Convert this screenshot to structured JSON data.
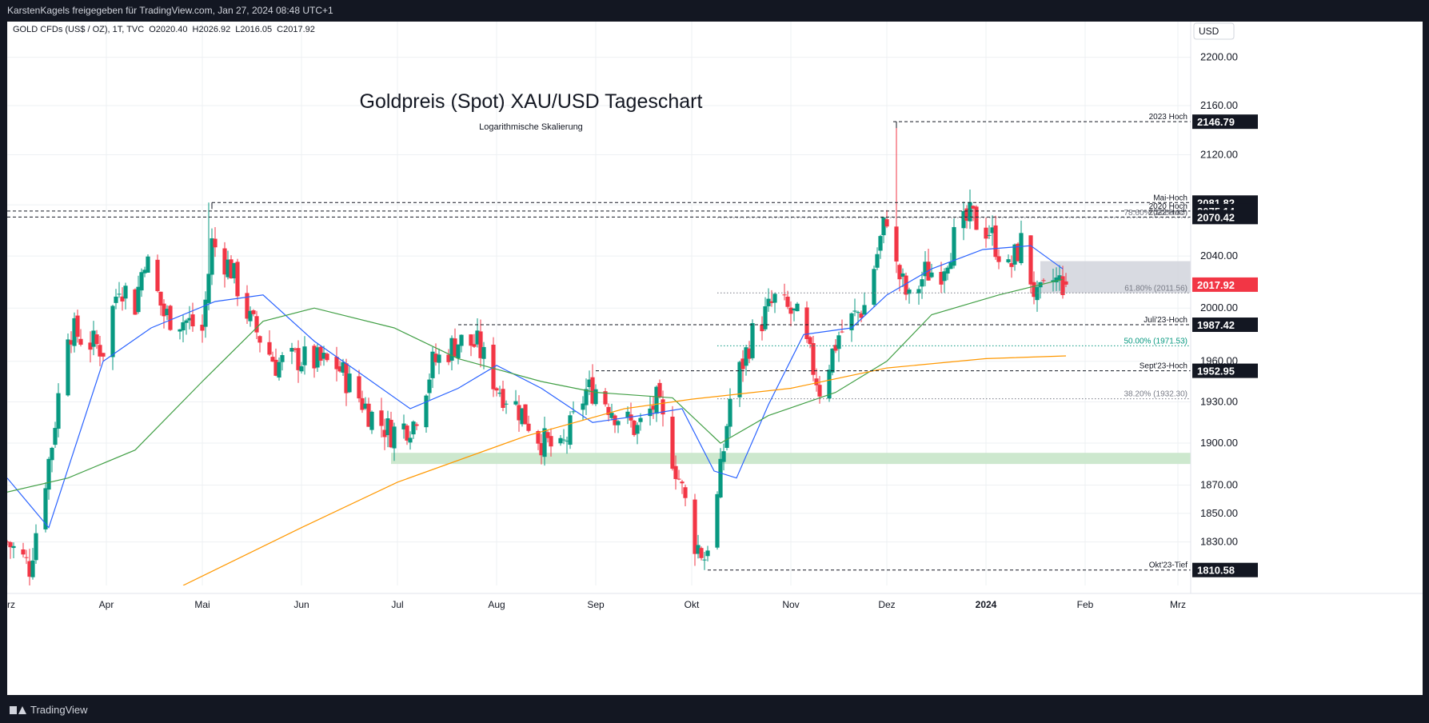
{
  "header": {
    "share_line": "KarstenKagels freigegeben für TradingView.com, Jan 27, 2024 08:48 UTC+1"
  },
  "symbol_bar": {
    "symbol": "GOLD CFDs (US$ / OZ), 1T, TVC",
    "open": "O2020.40",
    "high": "H2026.92",
    "low": "L2016.05",
    "close": "C2017.92"
  },
  "currency": "USD",
  "footer": {
    "brand": "TradingView"
  },
  "colors": {
    "up": "#089981",
    "down": "#f23645",
    "ma_blue": "#2962ff",
    "ma_green": "#43a047",
    "ma_orange": "#ff9800",
    "support_zone": "#c8e6c9",
    "range_box": "#d1d4dc",
    "last_price_label": "#f23645"
  },
  "chart_data": {
    "type": "candlestick",
    "title": "Goldpreis (Spot) XAU/USD Tageschart",
    "subtitle": "Logarithmische Skalierung",
    "scale": "log",
    "ylim": [
      1800,
      2230
    ],
    "xlim": [
      "2023-03-01",
      "2024-03-05"
    ],
    "price_ticks": [
      2200,
      2160,
      2120,
      2080,
      2040,
      2000,
      1960,
      1930,
      1900,
      1870,
      1850,
      1830
    ],
    "price_tick_labels": [
      "2200.00",
      "2160.00",
      "2120.00",
      "2080.00",
      "2040.00",
      "2000.00",
      "1960.00",
      "1930.00",
      "1900.00",
      "1870.00",
      "1850.00",
      "1830.00"
    ],
    "month_ticks": [
      {
        "date": "2023-03-01",
        "label": "Mrz"
      },
      {
        "date": "2023-04-01",
        "label": "Apr"
      },
      {
        "date": "2023-05-01",
        "label": "Mai"
      },
      {
        "date": "2023-06-01",
        "label": "Jun"
      },
      {
        "date": "2023-07-01",
        "label": "Jul"
      },
      {
        "date": "2023-08-01",
        "label": "Aug"
      },
      {
        "date": "2023-09-01",
        "label": "Sep"
      },
      {
        "date": "2023-10-01",
        "label": "Okt"
      },
      {
        "date": "2023-11-01",
        "label": "Nov"
      },
      {
        "date": "2023-12-01",
        "label": "Dez"
      },
      {
        "date": "2024-01-01",
        "label": "2024",
        "bold": true
      },
      {
        "date": "2024-02-01",
        "label": "Feb"
      },
      {
        "date": "2024-03-01",
        "label": "Mrz"
      }
    ],
    "price_path": [
      [
        "2023-03-01",
        1830
      ],
      [
        "2023-03-08",
        1813
      ],
      [
        "2023-03-15",
        1900
      ],
      [
        "2023-03-20",
        1985
      ],
      [
        "2023-03-24",
        1978
      ],
      [
        "2023-03-31",
        1969
      ],
      [
        "2023-04-05",
        2020
      ],
      [
        "2023-04-10",
        2003
      ],
      [
        "2023-04-13",
        2040
      ],
      [
        "2023-04-19",
        1995
      ],
      [
        "2023-04-26",
        1990
      ],
      [
        "2023-05-01",
        1983
      ],
      [
        "2023-05-04",
        2050
      ],
      [
        "2023-05-10",
        2030
      ],
      [
        "2023-05-16",
        1990
      ],
      [
        "2023-05-24",
        1958
      ],
      [
        "2023-05-31",
        1962
      ],
      [
        "2023-06-05",
        1960
      ],
      [
        "2023-06-12",
        1957
      ],
      [
        "2023-06-23",
        1920
      ],
      [
        "2023-06-29",
        1908
      ],
      [
        "2023-07-06",
        1915
      ],
      [
        "2023-07-12",
        1958
      ],
      [
        "2023-07-20",
        1975
      ],
      [
        "2023-07-26",
        1972
      ],
      [
        "2023-08-01",
        1942
      ],
      [
        "2023-08-08",
        1925
      ],
      [
        "2023-08-15",
        1902
      ],
      [
        "2023-08-21",
        1893
      ],
      [
        "2023-08-29",
        1938
      ],
      [
        "2023-09-01",
        1940
      ],
      [
        "2023-09-08",
        1920
      ],
      [
        "2023-09-14",
        1910
      ],
      [
        "2023-09-20",
        1930
      ],
      [
        "2023-09-27",
        1875
      ],
      [
        "2023-10-02",
        1830
      ],
      [
        "2023-10-05",
        1820
      ],
      [
        "2023-10-09",
        1860
      ],
      [
        "2023-10-13",
        1932
      ],
      [
        "2023-10-20",
        1980
      ],
      [
        "2023-10-27",
        2006
      ],
      [
        "2023-11-03",
        1992
      ],
      [
        "2023-11-10",
        1940
      ],
      [
        "2023-11-16",
        1980
      ],
      [
        "2023-11-24",
        2002
      ],
      [
        "2023-12-01",
        2072
      ],
      [
        "2023-12-04",
        2030
      ],
      [
        "2023-12-08",
        2005
      ],
      [
        "2023-12-13",
        2027
      ],
      [
        "2023-12-18",
        2030
      ],
      [
        "2023-12-22",
        2053
      ],
      [
        "2023-12-27",
        2070
      ],
      [
        "2024-01-02",
        2060
      ],
      [
        "2024-01-08",
        2028
      ],
      [
        "2024-01-12",
        2050
      ],
      [
        "2024-01-17",
        2005
      ],
      [
        "2024-01-22",
        2021
      ],
      [
        "2024-01-26",
        2018
      ]
    ],
    "moving_averages": [
      {
        "id": "ma20",
        "color": "blue",
        "points": [
          [
            "2023-03-01",
            1875
          ],
          [
            "2023-03-14",
            1840
          ],
          [
            "2023-03-31",
            1960
          ],
          [
            "2023-04-15",
            1985
          ],
          [
            "2023-05-05",
            2005
          ],
          [
            "2023-05-20",
            2010
          ],
          [
            "2023-06-05",
            1975
          ],
          [
            "2023-06-20",
            1950
          ],
          [
            "2023-07-05",
            1925
          ],
          [
            "2023-07-20",
            1940
          ],
          [
            "2023-08-01",
            1957
          ],
          [
            "2023-08-15",
            1940
          ],
          [
            "2023-08-31",
            1915
          ],
          [
            "2023-09-15",
            1920
          ],
          [
            "2023-09-28",
            1925
          ],
          [
            "2023-10-08",
            1880
          ],
          [
            "2023-10-15",
            1875
          ],
          [
            "2023-10-25",
            1928
          ],
          [
            "2023-11-05",
            1980
          ],
          [
            "2023-11-20",
            1985
          ],
          [
            "2023-12-01",
            2010
          ],
          [
            "2023-12-15",
            2030
          ],
          [
            "2023-12-31",
            2045
          ],
          [
            "2024-01-15",
            2048
          ],
          [
            "2024-01-25",
            2030
          ]
        ]
      },
      {
        "id": "ma50",
        "color": "green",
        "points": [
          [
            "2023-03-01",
            1865
          ],
          [
            "2023-03-20",
            1875
          ],
          [
            "2023-04-10",
            1895
          ],
          [
            "2023-05-01",
            1945
          ],
          [
            "2023-05-20",
            1990
          ],
          [
            "2023-06-05",
            2000
          ],
          [
            "2023-06-30",
            1985
          ],
          [
            "2023-07-20",
            1962
          ],
          [
            "2023-08-15",
            1945
          ],
          [
            "2023-09-01",
            1937
          ],
          [
            "2023-09-25",
            1933
          ],
          [
            "2023-10-10",
            1900
          ],
          [
            "2023-10-25",
            1920
          ],
          [
            "2023-11-15",
            1937
          ],
          [
            "2023-12-01",
            1960
          ],
          [
            "2023-12-15",
            1995
          ],
          [
            "2024-01-05",
            2010
          ],
          [
            "2024-01-25",
            2022
          ]
        ]
      },
      {
        "id": "ma200",
        "color": "orange",
        "points": [
          [
            "2023-04-25",
            1800
          ],
          [
            "2023-06-01",
            1840
          ],
          [
            "2023-07-01",
            1872
          ],
          [
            "2023-08-10",
            1905
          ],
          [
            "2023-09-10",
            1925
          ],
          [
            "2023-10-01",
            1932
          ],
          [
            "2023-11-01",
            1940
          ],
          [
            "2023-12-01",
            1955
          ],
          [
            "2024-01-01",
            1962
          ],
          [
            "2024-01-26",
            1964
          ]
        ]
      }
    ],
    "horizontal_levels": [
      {
        "value": 2146.79,
        "label": "2023 Hoch",
        "axis_label": "2146.79",
        "from": "2023-12-03",
        "style": "dashed"
      },
      {
        "value": 2081.82,
        "label": "Mai-Hoch",
        "axis_label": "2081.82",
        "from": "2023-05-04",
        "style": "dashed"
      },
      {
        "value": 2075.14,
        "label": "2020 Hoch",
        "axis_label": "2075.14",
        "from": "2023-03-01",
        "style": "dashed"
      },
      {
        "value": 2070.42,
        "label": "2022 Hoch",
        "axis_label": "2070.42",
        "from": "2023-03-01",
        "style": "dashed"
      },
      {
        "value": 2069.95,
        "label": "78.60% (2069.95)",
        "from": "2023-10-09",
        "style": "dotted",
        "color": "fib"
      },
      {
        "value": 2011.56,
        "label": "61.80% (2011.56)",
        "from": "2023-10-09",
        "style": "dotted",
        "color": "fib"
      },
      {
        "value": 1987.42,
        "label": "Juli'23-Hoch",
        "axis_label": "1987.42",
        "from": "2023-07-20",
        "style": "dashed"
      },
      {
        "value": 1971.53,
        "label": "50.00% (1971.53)",
        "from": "2023-10-09",
        "style": "dotted",
        "color": "fib_green"
      },
      {
        "value": 1952.95,
        "label": "Sept'23-Hoch",
        "axis_label": "1952.95",
        "from": "2023-09-01",
        "style": "dashed"
      },
      {
        "value": 1932.3,
        "label": "38.20% (1932.30)",
        "from": "2023-10-09",
        "style": "dotted",
        "color": "fib"
      },
      {
        "value": 1810.58,
        "label": "Okt'23-Tief",
        "axis_label": "1810.58",
        "from": "2023-10-06",
        "style": "dashed"
      }
    ],
    "zones": [
      {
        "id": "support",
        "from": "2023-06-29",
        "to": "2024-03-05",
        "ylow": 1885,
        "yhigh": 1893
      },
      {
        "id": "range",
        "from": "2024-01-18",
        "to": "2024-03-05",
        "ylow": 2011.56,
        "yhigh": 2036
      }
    ],
    "last_price": {
      "value": 2017.92,
      "label": "2017.92"
    }
  }
}
